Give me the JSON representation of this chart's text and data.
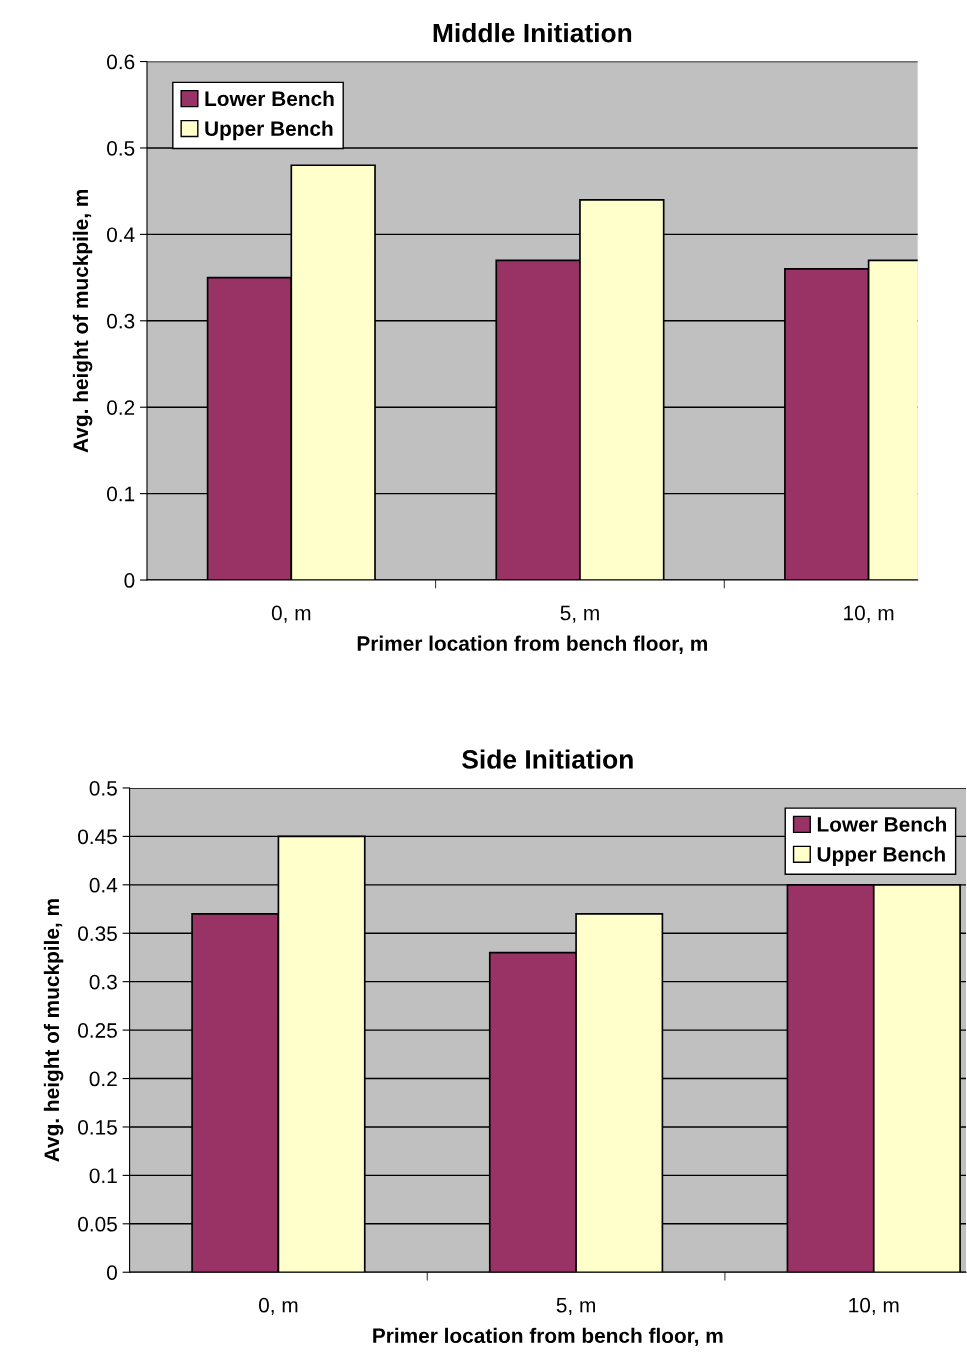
{
  "chart_data": [
    {
      "type": "bar",
      "title": "Middle Initiation",
      "xlabel": "Primer location from bench floor, m",
      "ylabel": "Avg. height of muckpile, m",
      "categories": [
        "0, m",
        "5, m",
        "10, m"
      ],
      "series": [
        {
          "name": "Lower Bench",
          "color": "#993366",
          "values": [
            0.35,
            0.37,
            0.36
          ]
        },
        {
          "name": "Upper Bench",
          "color": "#ffffcc",
          "values": [
            0.48,
            0.44,
            0.37
          ]
        }
      ],
      "ylim": [
        0,
        0.6
      ],
      "yticks": [
        {
          "value": 0,
          "label": "0"
        },
        0.1,
        0.2,
        0.3,
        0.4,
        0.5,
        0.6
      ],
      "grid": "y",
      "legend": "top left"
    },
    {
      "type": "bar",
      "title": "Side Initiation",
      "xlabel": "Primer location from bench floor, m",
      "ylabel": "Avg. height of muckpile, m",
      "categories": [
        "0, m",
        "5, m",
        "10, m"
      ],
      "series": [
        {
          "name": "Lower Bench",
          "color": "#993366",
          "values": [
            0.37,
            0.33,
            0.4
          ]
        },
        {
          "name": "Upper Bench",
          "color": "#ffffcc",
          "values": [
            0.45,
            0.37,
            0.4
          ]
        }
      ],
      "ylim": [
        0,
        0.5
      ],
      "yticks": [
        {
          "value": 0,
          "label": "0"
        },
        0.05,
        0.1,
        0.15,
        0.2,
        0.25,
        0.3,
        0.35,
        0.4,
        0.45,
        0.5
      ],
      "grid": "y",
      "legend": "top right"
    }
  ]
}
